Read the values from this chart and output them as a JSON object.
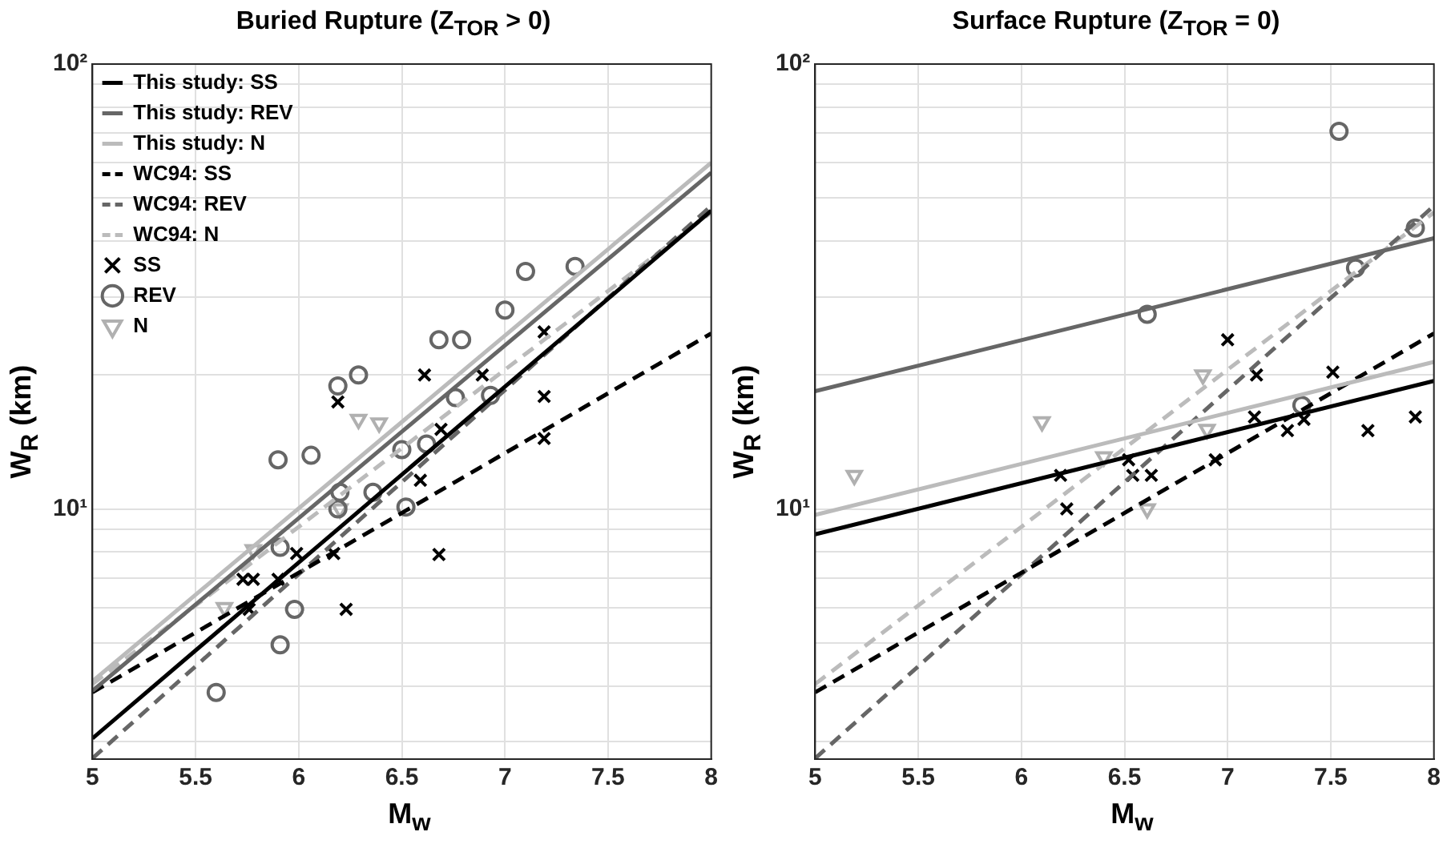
{
  "chart_data": [
    {
      "type": "scatter",
      "title": "Buried Rupture (Z$_{TOR}$ > 0)",
      "xlabel": "M$_{w}$",
      "ylabel": "W$_{R}$ (km)",
      "log": "y",
      "grid": true,
      "legend": "top left",
      "xlim": [
        5,
        8
      ],
      "xticks": [
        5,
        5.5,
        6,
        6.5,
        7,
        7.5,
        8
      ],
      "ylim": [
        2.74,
        100
      ],
      "yticks": [
        {
          "value": 3,
          "label": null
        },
        {
          "value": 4,
          "label": null
        },
        {
          "value": 5,
          "label": null
        },
        {
          "value": 6,
          "label": null
        },
        {
          "value": 7,
          "label": null
        },
        {
          "value": 8,
          "label": null
        },
        {
          "value": 9,
          "label": null
        },
        {
          "value": 10,
          "label": "10¹"
        },
        {
          "value": 20,
          "label": null
        },
        {
          "value": 30,
          "label": null
        },
        {
          "value": 40,
          "label": null
        },
        {
          "value": 50,
          "label": null
        },
        {
          "value": 60,
          "label": null
        },
        {
          "value": 70,
          "label": null
        },
        {
          "value": 80,
          "label": null
        },
        {
          "value": 90,
          "label": null
        },
        {
          "value": 100,
          "label": "10²"
        }
      ],
      "series": [
        {
          "name": "This study: SS",
          "type": "line",
          "color": "#000000",
          "line_style": "solid",
          "marker": "none",
          "x": [
            5,
            8
          ],
          "values": [
            3.05,
            46.8
          ]
        },
        {
          "name": "This study: REV",
          "type": "line",
          "color": "#666666",
          "line_style": "solid",
          "marker": "none",
          "x": [
            5,
            8
          ],
          "values": [
            3.9,
            57
          ]
        },
        {
          "name": "This study: N",
          "type": "line",
          "color": "#bbbbbb",
          "line_style": "solid",
          "marker": "none",
          "x": [
            5,
            8
          ],
          "values": [
            4.1,
            60
          ]
        },
        {
          "name": "WC94: SS",
          "type": "line",
          "color": "#000000",
          "line_style": "dashed",
          "marker": "none",
          "x": [
            5,
            8
          ],
          "values": [
            3.87,
            24.8
          ]
        },
        {
          "name": "WC94: REV",
          "type": "line",
          "color": "#666666",
          "line_style": "dashed",
          "marker": "none",
          "x": [
            5,
            8
          ],
          "values": [
            2.75,
            48
          ]
        },
        {
          "name": "WC94: N",
          "type": "line",
          "color": "#bbbbbb",
          "line_style": "dashed",
          "marker": "none",
          "x": [
            5,
            8
          ],
          "values": [
            4.04,
            46.4
          ]
        },
        {
          "name": "SS",
          "type": "scatter",
          "color": "#000000",
          "marker": "cross",
          "x": [
            6.19,
            6.61,
            6.89,
            7.19,
            7.19,
            6.69,
            7.19,
            6.59,
            6.68,
            6.23,
            6.17,
            5.99,
            5.9,
            5.73,
            5.78,
            5.76
          ],
          "values": [
            17.4,
            20,
            20,
            25,
            17.9,
            15.1,
            14.4,
            11.6,
            7.9,
            5.95,
            7.94,
            7.94,
            6.95,
            6.95,
            6.95,
            5.95
          ]
        },
        {
          "name": "REV",
          "type": "scatter",
          "color": "#666666",
          "marker": "circle",
          "x": [
            6.19,
            6.29,
            6.68,
            6.79,
            7,
            7.1,
            7.34,
            6.76,
            6.93,
            5.9,
            6.06,
            6.5,
            6.62,
            6.2,
            6.36,
            6.19,
            6.52,
            5.91,
            5.98,
            5.91,
            5.6
          ],
          "values": [
            18.9,
            20,
            24,
            24,
            28,
            34.2,
            35.1,
            17.8,
            18,
            12.9,
            13.2,
            13.6,
            14,
            10.9,
            10.9,
            10,
            10.1,
            8.2,
            5.95,
            4.95,
            3.87
          ]
        },
        {
          "name": "N",
          "type": "scatter",
          "color": "#b0b0b0",
          "marker": "triangle",
          "x": [
            6.29,
            6.39,
            6.2,
            5.78,
            5.64
          ],
          "values": [
            15.9,
            15.6,
            10,
            8.1,
            6
          ]
        }
      ]
    },
    {
      "type": "scatter",
      "title": "Surface Rupture (Z$_{TOR}$ = 0)",
      "xlabel": "M$_{w}$",
      "ylabel": "W$_{R}$ (km)",
      "log": "y",
      "grid": true,
      "xlim": [
        5,
        8
      ],
      "xticks": [
        5,
        5.5,
        6,
        6.5,
        7,
        7.5,
        8
      ],
      "ylim": [
        2.74,
        100
      ],
      "yticks": [
        {
          "value": 3,
          "label": null
        },
        {
          "value": 4,
          "label": null
        },
        {
          "value": 5,
          "label": null
        },
        {
          "value": 6,
          "label": null
        },
        {
          "value": 7,
          "label": null
        },
        {
          "value": 8,
          "label": null
        },
        {
          "value": 9,
          "label": null
        },
        {
          "value": 10,
          "label": "10¹"
        },
        {
          "value": 20,
          "label": null
        },
        {
          "value": 30,
          "label": null
        },
        {
          "value": 40,
          "label": null
        },
        {
          "value": 50,
          "label": null
        },
        {
          "value": 60,
          "label": null
        },
        {
          "value": 70,
          "label": null
        },
        {
          "value": 80,
          "label": null
        },
        {
          "value": 90,
          "label": null
        },
        {
          "value": 100,
          "label": "10²"
        }
      ],
      "series": [
        {
          "type": "line",
          "color": "#000000",
          "line_style": "solid",
          "marker": "none",
          "x": [
            5,
            8
          ],
          "values": [
            8.77,
            19.4
          ]
        },
        {
          "type": "line",
          "color": "#666666",
          "line_style": "solid",
          "marker": "none",
          "x": [
            5,
            8
          ],
          "values": [
            18.4,
            40.6
          ]
        },
        {
          "type": "line",
          "color": "#bbbbbb",
          "line_style": "solid",
          "marker": "none",
          "x": [
            5,
            8
          ],
          "values": [
            9.7,
            21.4
          ]
        },
        {
          "type": "line",
          "color": "#000000",
          "line_style": "dashed",
          "marker": "none",
          "x": [
            5,
            8
          ],
          "values": [
            3.87,
            24.8
          ]
        },
        {
          "type": "line",
          "color": "#666666",
          "line_style": "dashed",
          "marker": "none",
          "x": [
            5,
            8
          ],
          "values": [
            2.75,
            48
          ]
        },
        {
          "type": "line",
          "color": "#bbbbbb",
          "line_style": "dashed",
          "marker": "none",
          "x": [
            5,
            8
          ],
          "values": [
            4.04,
            46.4
          ]
        },
        {
          "type": "scatter",
          "color": "#000000",
          "marker": "cross",
          "x": [
            7,
            7.14,
            7.51,
            7.13,
            7.29,
            7.37,
            7.68,
            7.91,
            6.19,
            6.52,
            6.54,
            6.63,
            6.22,
            6.94
          ],
          "values": [
            24,
            20,
            20.3,
            16.1,
            15,
            15.9,
            15,
            16.1,
            11.9,
            12.9,
            11.9,
            11.9,
            10,
            12.9
          ]
        },
        {
          "type": "scatter",
          "color": "#666666",
          "marker": "circle",
          "x": [
            7.54,
            7.91,
            7.62,
            6.61,
            7.36
          ],
          "values": [
            70.6,
            42.8,
            34.8,
            27.4,
            17.1
          ]
        },
        {
          "type": "scatter",
          "color": "#b0b0b0",
          "marker": "triangle",
          "x": [
            6.88,
            6.1,
            6.9,
            6.4,
            5.19,
            6.61
          ],
          "values": [
            20,
            15.7,
            15.1,
            13.1,
            11.9,
            10
          ]
        }
      ]
    }
  ]
}
